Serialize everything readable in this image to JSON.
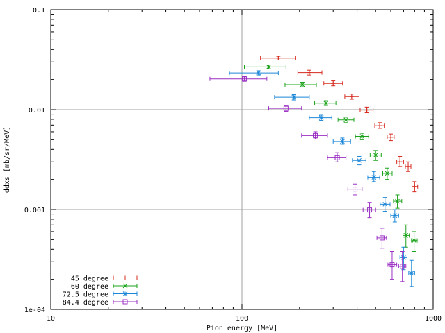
{
  "chart_data": {
    "type": "scatter",
    "xlabel": "Pion energy [MeV]",
    "ylabel": "ddxs [mb/sr/MeV]",
    "x_scale": "log",
    "y_scale": "log",
    "xlim": [
      10,
      1000
    ],
    "ylim": [
      0.0001,
      0.1
    ],
    "grid": true,
    "legend_position": "bottom-left",
    "x_ticks": [
      {
        "value": 10,
        "label": "10"
      },
      {
        "value": 100,
        "label": "100"
      },
      {
        "value": 1000,
        "label": "1000"
      }
    ],
    "y_ticks": [
      {
        "value": 0.0001,
        "label": "1e-04"
      },
      {
        "value": 0.001,
        "label": "0.001"
      },
      {
        "value": 0.01,
        "label": "0.01"
      },
      {
        "value": 0.1,
        "label": "0.1"
      }
    ],
    "series": [
      {
        "name": "45 degree",
        "color": "#d62a1e",
        "marker": "plus",
        "points": [
          {
            "x": 155,
            "y": 0.0328,
            "xerr": [
              125,
              190
            ],
            "yerr": [
              0.0314,
              0.0342
            ]
          },
          {
            "x": 225,
            "y": 0.0235,
            "xerr": [
              196,
              262
            ],
            "yerr": [
              0.0222,
              0.0248
            ]
          },
          {
            "x": 300,
            "y": 0.0183,
            "xerr": [
              268,
              336
            ],
            "yerr": [
              0.0173,
              0.0194
            ]
          },
          {
            "x": 375,
            "y": 0.0135,
            "xerr": [
              345,
              410
            ],
            "yerr": [
              0.0127,
              0.0143
            ]
          },
          {
            "x": 450,
            "y": 0.0099,
            "xerr": [
              415,
              485
            ],
            "yerr": [
              0.0093,
              0.0106
            ]
          },
          {
            "x": 525,
            "y": 0.0069,
            "xerr": [
              495,
              555
            ],
            "yerr": [
              0.0065,
              0.0074
            ]
          },
          {
            "x": 600,
            "y": 0.0053,
            "xerr": [
              575,
              625
            ],
            "yerr": [
              0.0049,
              0.0057
            ]
          },
          {
            "x": 670,
            "y": 0.003,
            "xerr": [
              645,
              700
            ],
            "yerr": [
              0.0027,
              0.0034
            ]
          },
          {
            "x": 740,
            "y": 0.0027,
            "xerr": [
              715,
              765
            ],
            "yerr": [
              0.0024,
              0.003
            ]
          },
          {
            "x": 800,
            "y": 0.0017,
            "xerr": [
              775,
              830
            ],
            "yerr": [
              0.0015,
              0.0019
            ]
          }
        ]
      },
      {
        "name": "60 degree",
        "color": "#1aa31a",
        "marker": "cross",
        "points": [
          {
            "x": 138,
            "y": 0.0268,
            "xerr": [
              103,
              170
            ],
            "yerr": [
              0.0256,
              0.028
            ]
          },
          {
            "x": 207,
            "y": 0.0178,
            "xerr": [
              168,
              245
            ],
            "yerr": [
              0.0169,
              0.0188
            ]
          },
          {
            "x": 275,
            "y": 0.0116,
            "xerr": [
              240,
              310
            ],
            "yerr": [
              0.011,
              0.0123
            ]
          },
          {
            "x": 350,
            "y": 0.0079,
            "xerr": [
              318,
              385
            ],
            "yerr": [
              0.0074,
              0.0084
            ]
          },
          {
            "x": 425,
            "y": 0.0054,
            "xerr": [
              392,
              460
            ],
            "yerr": [
              0.005,
              0.0058
            ]
          },
          {
            "x": 500,
            "y": 0.0035,
            "xerr": [
              468,
              535
            ],
            "yerr": [
              0.0031,
              0.0039
            ]
          },
          {
            "x": 575,
            "y": 0.0023,
            "xerr": [
              545,
              610
            ],
            "yerr": [
              0.002,
              0.0026
            ]
          },
          {
            "x": 650,
            "y": 0.00121,
            "xerr": [
              620,
              685
            ],
            "yerr": [
              0.00103,
              0.0014
            ]
          },
          {
            "x": 720,
            "y": 0.00055,
            "xerr": [
              695,
              750
            ],
            "yerr": [
              0.00042,
              0.0007
            ]
          },
          {
            "x": 795,
            "y": 0.00049,
            "xerr": [
              770,
              825
            ],
            "yerr": [
              0.00038,
              0.0006
            ]
          }
        ]
      },
      {
        "name": "72.5 degree",
        "color": "#1e88d8",
        "marker": "star",
        "points": [
          {
            "x": 122,
            "y": 0.0233,
            "xerr": [
              86,
              155
            ],
            "yerr": [
              0.0222,
              0.0245
            ]
          },
          {
            "x": 187,
            "y": 0.0133,
            "xerr": [
              148,
              225
            ],
            "yerr": [
              0.0125,
              0.0141
            ]
          },
          {
            "x": 260,
            "y": 0.0083,
            "xerr": [
              225,
              295
            ],
            "yerr": [
              0.0078,
              0.0088
            ]
          },
          {
            "x": 335,
            "y": 0.0048,
            "xerr": [
              300,
              370
            ],
            "yerr": [
              0.0045,
              0.0052
            ]
          },
          {
            "x": 410,
            "y": 0.0031,
            "xerr": [
              378,
              445
            ],
            "yerr": [
              0.0028,
              0.0034
            ]
          },
          {
            "x": 490,
            "y": 0.0021,
            "xerr": [
              455,
              525
            ],
            "yerr": [
              0.0019,
              0.0024
            ]
          },
          {
            "x": 560,
            "y": 0.00113,
            "xerr": [
              528,
              595
            ],
            "yerr": [
              0.00096,
              0.00132
            ]
          },
          {
            "x": 630,
            "y": 0.00087,
            "xerr": [
              600,
              660
            ],
            "yerr": [
              0.00075,
              0.001
            ]
          },
          {
            "x": 700,
            "y": 0.00033,
            "xerr": [
              670,
              730
            ],
            "yerr": [
              0.00025,
              0.00042
            ]
          },
          {
            "x": 770,
            "y": 0.00023,
            "xerr": [
              745,
              800
            ],
            "yerr": [
              0.00017,
              0.00031
            ]
          }
        ]
      },
      {
        "name": "84.4 degree",
        "color": "#9b2fc4",
        "marker": "square",
        "points": [
          {
            "x": 103,
            "y": 0.0203,
            "xerr": [
              68,
              135
            ],
            "yerr": [
              0.0192,
              0.0215
            ]
          },
          {
            "x": 170,
            "y": 0.0103,
            "xerr": [
              138,
              205
            ],
            "yerr": [
              0.0096,
              0.011
            ]
          },
          {
            "x": 242,
            "y": 0.0055,
            "xerr": [
              205,
              280
            ],
            "yerr": [
              0.0051,
              0.006
            ]
          },
          {
            "x": 315,
            "y": 0.0033,
            "xerr": [
              280,
              350
            ],
            "yerr": [
              0.003,
              0.0037
            ]
          },
          {
            "x": 390,
            "y": 0.0016,
            "xerr": [
              358,
              425
            ],
            "yerr": [
              0.0014,
              0.0018
            ]
          },
          {
            "x": 465,
            "y": 0.00099,
            "xerr": [
              430,
              500
            ],
            "yerr": [
              0.00083,
              0.00118
            ]
          },
          {
            "x": 540,
            "y": 0.00052,
            "xerr": [
              508,
              570
            ],
            "yerr": [
              0.00041,
              0.00065
            ]
          },
          {
            "x": 610,
            "y": 0.00028,
            "xerr": [
              580,
              645
            ],
            "yerr": [
              0.0002,
              0.00038
            ]
          },
          {
            "x": 690,
            "y": 0.00027,
            "xerr": [
              660,
              720
            ],
            "yerr": [
              0.00019,
              0.00038
            ]
          }
        ]
      }
    ]
  }
}
